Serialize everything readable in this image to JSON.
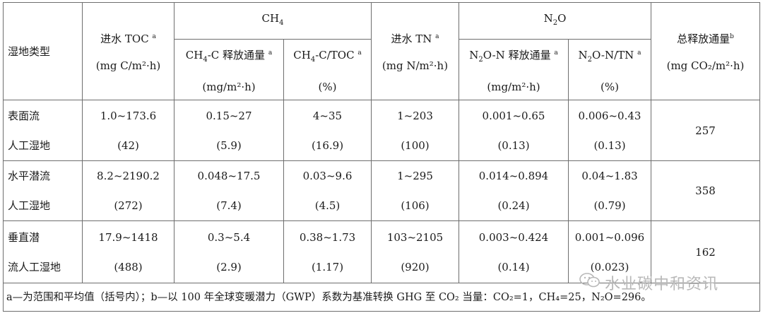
{
  "header": {
    "wetland_type": "湿地类型",
    "toc_in_line1": "进水 TOC ",
    "toc_in_sup": "a",
    "toc_unit": "(mg C/m²·h)",
    "ch4_group": "CH",
    "ch4_group_sub": "4",
    "tn_in_line1": "进水 TN ",
    "tn_in_sup": "a",
    "tn_unit": "(mg N/m²·h)",
    "n2o_group_a": "N",
    "n2o_group_sub": "2",
    "n2o_group_b": "O",
    "total_line1": "总释放通量",
    "total_sup": "b",
    "total_unit": "(mg CO₂/m²·h)",
    "ch4c_flux_a": "CH",
    "ch4c_flux_sub": "4",
    "ch4c_flux_b": "-C 释放通量",
    "ch4c_flux_sup": "a",
    "ch4c_flux_unit": "(mg/m²·h)",
    "ch4c_toc_a": "CH",
    "ch4c_toc_sub": "4",
    "ch4c_toc_b": "-C/TOC",
    "ch4c_toc_sup": "a",
    "ch4c_toc_unit": "(%)",
    "n2on_flux_a": "N",
    "n2on_flux_sub": "2",
    "n2on_flux_b": "O-N 释放通量",
    "n2on_flux_sup": "a",
    "n2on_flux_unit": "(mg/m²·h)",
    "n2on_tn_a": "N",
    "n2on_tn_sub": "2",
    "n2on_tn_b": "O-N/TN",
    "n2on_tn_sup": "a",
    "n2on_tn_unit": "(%)"
  },
  "rows": [
    {
      "type_line1": "表面流",
      "type_line2": "人工湿地",
      "toc_range": "1.0~173.6",
      "toc_mean": "(42)",
      "ch4_flux_range": "0.15~27",
      "ch4_flux_mean": "(5.9)",
      "ch4_ratio_range": "4~35",
      "ch4_ratio_mean": "(16.9)",
      "tn_range": "1~203",
      "tn_mean": "(100)",
      "n2o_flux_range": "0.001~0.65",
      "n2o_flux_mean": "(0.13)",
      "n2o_ratio_range": "0.006~0.43",
      "n2o_ratio_mean": "(0.13)",
      "total": "257"
    },
    {
      "type_line1": "水平潜流",
      "type_line2": "人工湿地",
      "toc_range": "8.2~2190.2",
      "toc_mean": "(272)",
      "ch4_flux_range": "0.048~17.5",
      "ch4_flux_mean": "(7.4)",
      "ch4_ratio_range": "0.03~9.6",
      "ch4_ratio_mean": "(4.5)",
      "tn_range": "1~295",
      "tn_mean": "(106)",
      "n2o_flux_range": "0.014~0.894",
      "n2o_flux_mean": "(0.24)",
      "n2o_ratio_range": "0.04~1.83",
      "n2o_ratio_mean": "(0.79)",
      "total": "358"
    },
    {
      "type_line1": "垂直潜",
      "type_line2": "流人工湿地",
      "toc_range": "17.9~1418",
      "toc_mean": "(488)",
      "ch4_flux_range": "0.3~5.4",
      "ch4_flux_mean": "(2.9)",
      "ch4_ratio_range": "0.38~1.73",
      "ch4_ratio_mean": "(1.17)",
      "tn_range": "103~2105",
      "tn_mean": "(920)",
      "n2o_flux_range": "0.003~0.424",
      "n2o_flux_mean": "(0.14)",
      "n2o_ratio_range": "0.001~0.096",
      "n2o_ratio_mean": "(0.023)",
      "total": "162"
    }
  ],
  "footnote": "a—为范围和平均值（括号内）；b—以 100 年全球变暖潜力（GWP）系数为基准转换 GHG 至 CO₂ 当量：CO₂=1，CH₄=25，N₂O=296。",
  "watermark": "水业碳中和资讯",
  "watermark_icon": "wechat-icon"
}
